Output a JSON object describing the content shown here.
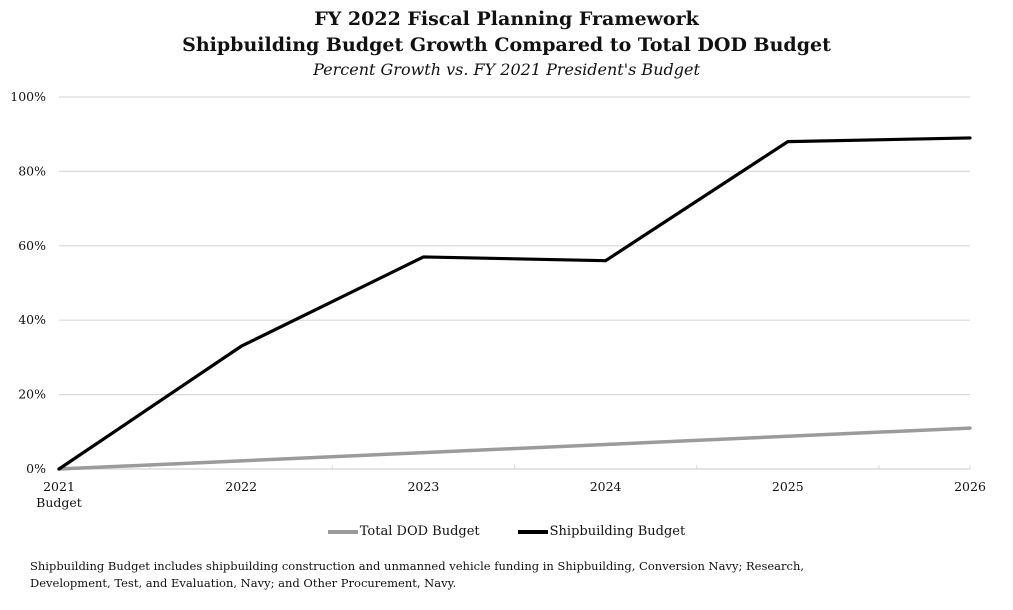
{
  "titles": {
    "line1": "FY 2022 Fiscal Planning Framework",
    "line2": "Shipbuilding Budget Growth Compared to Total DOD Budget",
    "subtitle": "Percent Growth vs. FY 2021 President's Budget"
  },
  "footnote": "Shipbuilding Budget includes shipbuilding construction and unmanned vehicle funding in Shipbuilding, Conversion Navy; Research, Development, Test, and Evaluation, Navy; and Other Procurement, Navy.",
  "chart_data": {
    "type": "line",
    "title": "FY 2022 Fiscal Planning Framework — Shipbuilding Budget Growth Compared to Total DOD Budget",
    "subtitle": "Percent Growth vs. FY 2021 President's Budget",
    "xlabel": "",
    "ylabel": "",
    "categories": [
      [
        "2021",
        "Budget"
      ],
      [
        "2022"
      ],
      [
        "2023"
      ],
      [
        "2024"
      ],
      [
        "2025"
      ],
      [
        "2026"
      ]
    ],
    "ylim": [
      0,
      100
    ],
    "yticks": [
      0,
      20,
      40,
      60,
      80,
      100
    ],
    "ytick_labels": [
      "0%",
      "20%",
      "40%",
      "60%",
      "80%",
      "100%"
    ],
    "grid": true,
    "legend_position": "bottom",
    "series": [
      {
        "name": "Total DOD Budget",
        "color": "#9b9b9b",
        "values": [
          0,
          2.2,
          4.4,
          6.6,
          8.8,
          11
        ]
      },
      {
        "name": "Shipbuilding Budget",
        "color": "#000000",
        "values": [
          0,
          33,
          57,
          56,
          88,
          89
        ]
      }
    ]
  }
}
